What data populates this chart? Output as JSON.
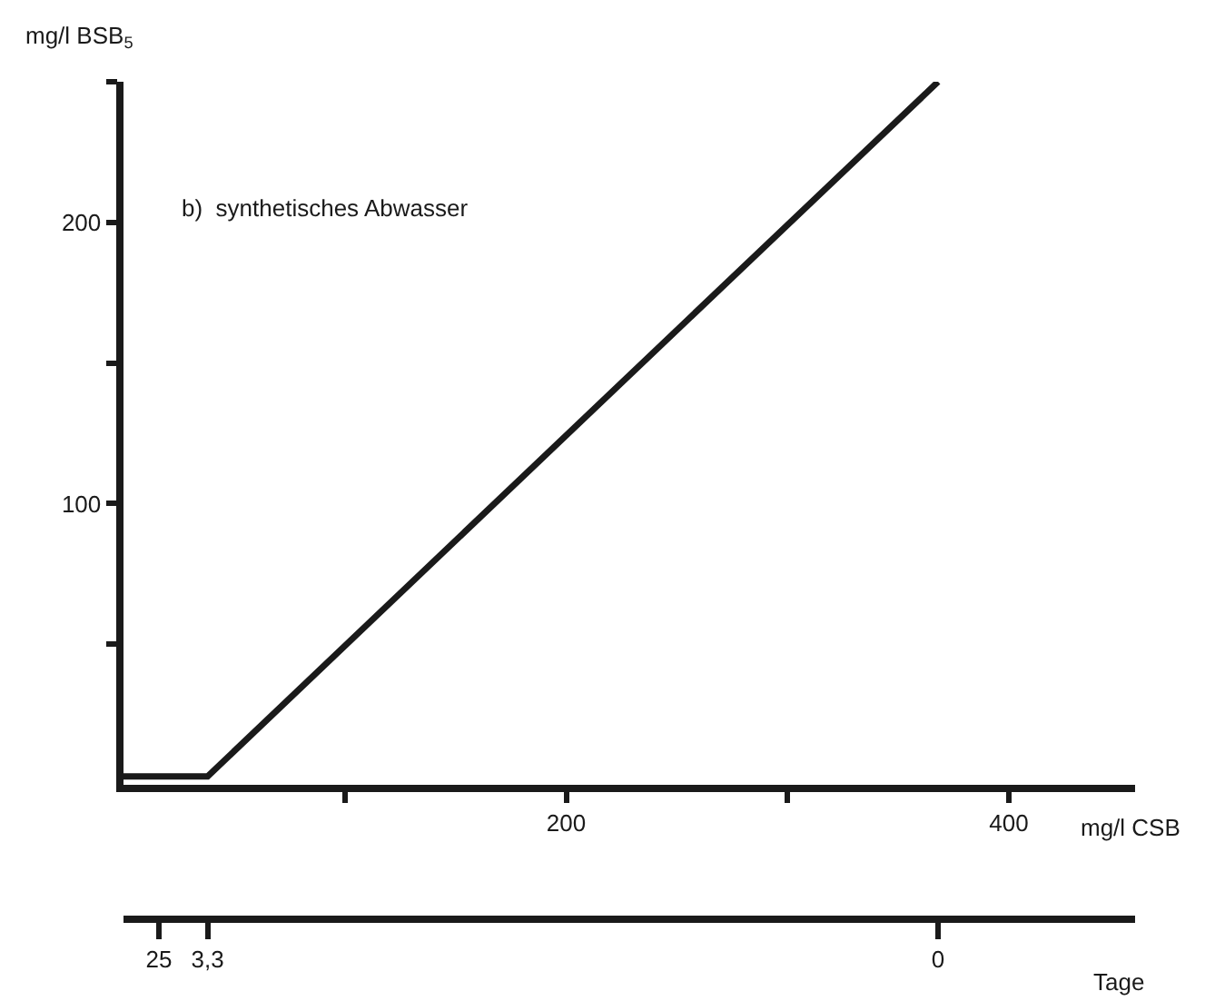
{
  "chart_data": {
    "type": "line",
    "title": "b)  synthetisches Abwasser",
    "ylabel": "mg/l BSB$_{5}$",
    "xlabel": "mg/l CSB",
    "x2label": "Tage",
    "series": [
      {
        "color": "#1a1a1a",
        "x": [
          0,
          16,
          38,
          368
        ],
        "values": [
          3,
          3,
          3,
          250
        ]
      }
    ],
    "xlim": [
      0,
      457
    ],
    "ylim": [
      0,
      250
    ],
    "xticks": [
      {
        "value": 100,
        "label": null
      },
      200,
      {
        "value": 300,
        "label": null
      },
      400
    ],
    "yticks": [
      {
        "value": 50,
        "label": null
      },
      100,
      {
        "value": 150,
        "label": null
      },
      200,
      {
        "value": 250,
        "label": null
      }
    ],
    "annotations": [
      {
        "text": "25",
        "x": 16
      },
      {
        "text": "3,3",
        "x": 38
      },
      {
        "text": "0",
        "x": 368
      }
    ],
    "marker": "none",
    "line_style": "solid"
  }
}
